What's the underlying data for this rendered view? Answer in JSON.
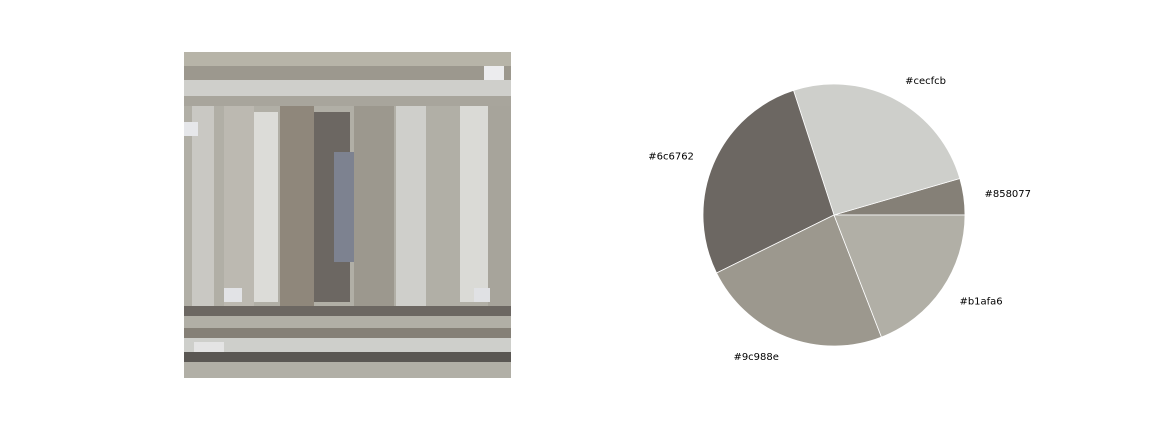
{
  "chart_data": {
    "type": "pie",
    "title": "",
    "start_angle_deg": 0,
    "direction": "counterclockwise",
    "slices": [
      {
        "label": "#858077",
        "value": 4.5,
        "color": "#858077"
      },
      {
        "label": "#cecfcb",
        "value": 25.5,
        "color": "#cecfcb"
      },
      {
        "label": "#6c6762",
        "value": 27.3,
        "color": "#6c6762"
      },
      {
        "label": "#9c988e",
        "value": 23.6,
        "color": "#9c988e"
      },
      {
        "label": "#b1afa6",
        "value": 19.1,
        "color": "#b1afa6"
      }
    ]
  },
  "image_panel": {
    "description_colors": [
      "#b1afa6",
      "#cecfcb",
      "#9c988e",
      "#858077",
      "#6c6762",
      "#5a5753",
      "#dcdcd8"
    ]
  }
}
